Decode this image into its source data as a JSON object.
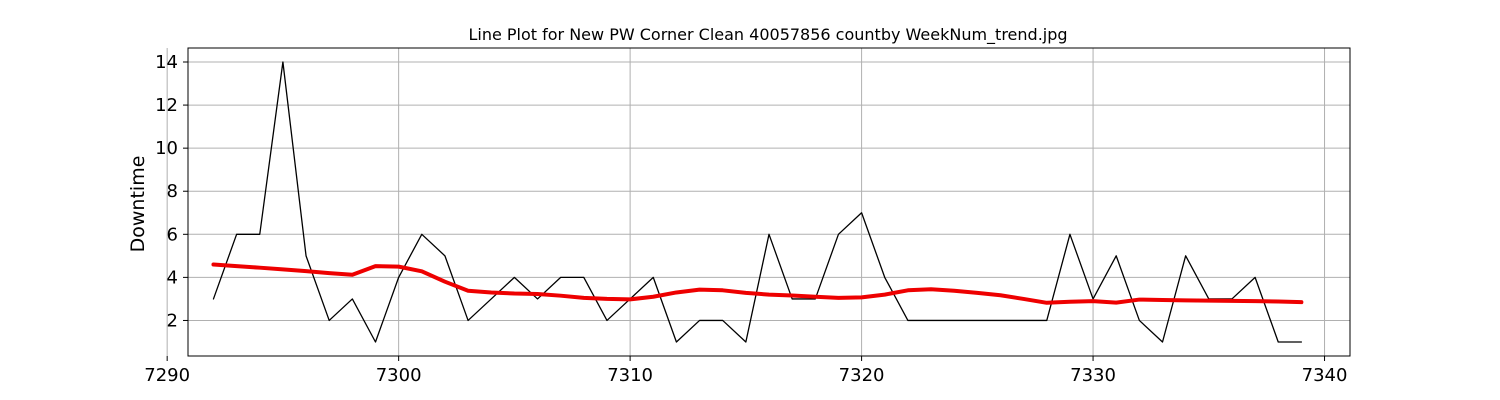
{
  "chart_data": {
    "type": "line",
    "title": "Line Plot for New PW Corner Clean 40057856 countby WeekNum_trend.jpg",
    "xlabel": "",
    "ylabel": "Downtime",
    "xlim": [
      7290.9,
      7341.1
    ],
    "ylim": [
      0.35,
      14.65
    ],
    "x_ticks": [
      7290,
      7300,
      7310,
      7320,
      7330,
      7340
    ],
    "y_ticks": [
      2,
      4,
      6,
      8,
      10,
      12,
      14
    ],
    "grid": true,
    "legend": "none",
    "series": [
      {
        "color": "#000000",
        "x": [
          7292,
          7293,
          7294,
          7295,
          7296,
          7297,
          7298,
          7299,
          7300,
          7301,
          7302,
          7303,
          7304,
          7305,
          7306,
          7307,
          7308,
          7309,
          7310,
          7311,
          7312,
          7313,
          7314,
          7315,
          7316,
          7317,
          7318,
          7319,
          7320,
          7321,
          7322,
          7323,
          7324,
          7325,
          7326,
          7327,
          7328,
          7329,
          7330,
          7331,
          7332,
          7333,
          7334,
          7335,
          7336,
          7337,
          7338,
          7339
        ],
        "values": [
          3,
          6,
          6,
          14,
          5,
          2,
          3,
          1,
          4,
          6,
          5,
          2,
          3,
          4,
          3,
          4,
          4,
          2,
          3,
          4,
          1,
          2,
          2,
          1,
          6,
          3,
          3,
          6,
          7,
          4,
          2,
          2,
          2,
          2,
          2,
          2,
          2,
          6,
          3,
          5,
          2,
          1,
          5,
          3,
          3,
          4,
          1,
          1
        ]
      },
      {
        "color": "#ee0000",
        "x": [
          7292,
          7293,
          7294,
          7295,
          7296,
          7297,
          7298,
          7299,
          7300,
          7301,
          7302,
          7303,
          7304,
          7305,
          7306,
          7307,
          7308,
          7309,
          7310,
          7311,
          7312,
          7313,
          7314,
          7315,
          7316,
          7317,
          7318,
          7319,
          7320,
          7321,
          7322,
          7323,
          7324,
          7325,
          7326,
          7327,
          7328,
          7329,
          7330,
          7331,
          7332,
          7333,
          7334,
          7335,
          7336,
          7337,
          7338,
          7339
        ],
        "values": [
          4.6,
          4.52,
          4.45,
          4.37,
          4.29,
          4.2,
          4.12,
          4.52,
          4.5,
          4.28,
          3.8,
          3.38,
          3.3,
          3.25,
          3.23,
          3.15,
          3.05,
          3.0,
          2.98,
          3.1,
          3.3,
          3.43,
          3.4,
          3.28,
          3.2,
          3.16,
          3.1,
          3.05,
          3.07,
          3.2,
          3.4,
          3.45,
          3.38,
          3.28,
          3.17,
          3.0,
          2.82,
          2.87,
          2.9,
          2.83,
          2.97,
          2.95,
          2.93,
          2.92,
          2.91,
          2.9,
          2.88,
          2.85
        ]
      }
    ]
  }
}
